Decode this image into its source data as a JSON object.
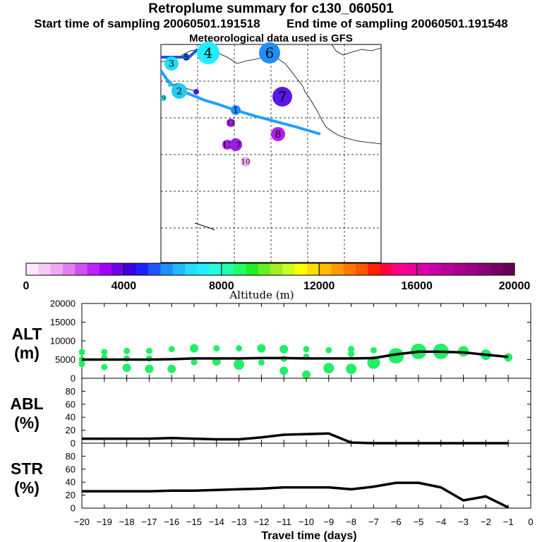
{
  "header": {
    "title": "Retroplume summary for c130_060501",
    "start_label": "Start time of sampling 20060501.191518",
    "end_label": "End time of sampling 20060501.191548",
    "met_label": "Meteorological data used is GFS"
  },
  "colors": {
    "series_line": "#000000",
    "alt_markers": "#22ee66",
    "track_main": "#1f9fff",
    "track_alt": "#1e56d8"
  },
  "chart_data": [
    {
      "type": "scatter",
      "name": "map",
      "description_labels": [
        "1",
        "2",
        "3",
        "4",
        "5",
        "6",
        "7",
        "8",
        "9",
        "10",
        "11",
        "12"
      ],
      "clusters": [
        {
          "label": "1",
          "color": "#1f8fff",
          "size": "small"
        },
        {
          "label": "2",
          "color": "#22ccee",
          "size": "medium"
        },
        {
          "label": "3",
          "color": "#22ddf8",
          "size": "medium"
        },
        {
          "label": "4",
          "color": "#22eeff",
          "size": "large"
        },
        {
          "label": "5",
          "color": "#1e56d8",
          "size": "small"
        },
        {
          "label": "6",
          "color": "#1f8fff",
          "size": "large"
        },
        {
          "label": "7",
          "color": "#5a17e8",
          "size": "large"
        },
        {
          "label": "8",
          "color": "#b51ae8",
          "size": "medium"
        },
        {
          "label": "9",
          "color": "#22eeff",
          "size": "small"
        },
        {
          "label": "10",
          "color": "#f0b8f0",
          "size": "small"
        },
        {
          "label": "11",
          "color": "#a91ee0",
          "size": "small"
        },
        {
          "label": "12",
          "color": "#9a2ad6",
          "size": "small"
        }
      ]
    },
    {
      "type": "colorbar",
      "name": "altitude_scale",
      "title": "Altitude (m)",
      "tick_labels": [
        "0",
        "4000",
        "8000",
        "12000",
        "16000",
        "20000"
      ],
      "range": [
        0,
        20000
      ],
      "colors": [
        "#ffe8ff",
        "#f8c8f8",
        "#f0a8f0",
        "#e080f0",
        "#d050f0",
        "#c020ff",
        "#9f00ff",
        "#7000ee",
        "#4000dd",
        "#2020ff",
        "#1e56ff",
        "#1f8fff",
        "#1fb8ff",
        "#22ddff",
        "#22eeff",
        "#22ffdd",
        "#22ffaa",
        "#22ff66",
        "#22ee22",
        "#66ee22",
        "#a0ee22",
        "#ccff22",
        "#ffff00",
        "#ffdd00",
        "#ffbb00",
        "#ff9900",
        "#ff7700",
        "#ff5500",
        "#ff2200",
        "#ff0044",
        "#ff0088",
        "#ee0099",
        "#dd00aa",
        "#cc00aa",
        "#bb0099",
        "#aa0088",
        "#990088",
        "#880077",
        "#770066",
        "#660055"
      ]
    },
    {
      "type": "line",
      "name": "ALT",
      "ylabel": "ALT\n(m)",
      "ylim": [
        0,
        20000
      ],
      "yticks": [
        "0",
        "5000",
        "10000",
        "15000",
        "20000"
      ],
      "x": [
        -20,
        -19,
        -18,
        -17,
        -16,
        -15,
        -14,
        -13,
        -12,
        -11,
        -10,
        -9,
        -8,
        -7,
        -6,
        -5,
        -4,
        -3,
        -2,
        -1
      ],
      "values": [
        5000,
        5000,
        5000,
        5000,
        5100,
        5300,
        5300,
        5300,
        5400,
        5400,
        5300,
        5300,
        5300,
        5400,
        6400,
        7100,
        7100,
        6900,
        6300,
        5700
      ],
      "markers": [
        {
          "x": -20,
          "y": 7000,
          "size": 1
        },
        {
          "x": -20,
          "y": 5000,
          "size": 1
        },
        {
          "x": -20,
          "y": 3800,
          "size": 1
        },
        {
          "x": -19,
          "y": 7000,
          "size": 1
        },
        {
          "x": -19,
          "y": 5500,
          "size": 1
        },
        {
          "x": -19,
          "y": 3000,
          "size": 1
        },
        {
          "x": -18,
          "y": 7300,
          "size": 1
        },
        {
          "x": -18,
          "y": 5300,
          "size": 1
        },
        {
          "x": -18,
          "y": 2800,
          "size": 2
        },
        {
          "x": -17,
          "y": 7300,
          "size": 1
        },
        {
          "x": -17,
          "y": 5300,
          "size": 1
        },
        {
          "x": -17,
          "y": 2500,
          "size": 2
        },
        {
          "x": -16,
          "y": 7800,
          "size": 1
        },
        {
          "x": -16,
          "y": 2500,
          "size": 2
        },
        {
          "x": -15,
          "y": 8000,
          "size": 2
        },
        {
          "x": -15,
          "y": 4300,
          "size": 1
        },
        {
          "x": -14,
          "y": 8000,
          "size": 1
        },
        {
          "x": -14,
          "y": 4500,
          "size": 2
        },
        {
          "x": -13,
          "y": 8000,
          "size": 1
        },
        {
          "x": -13,
          "y": 3700,
          "size": 3
        },
        {
          "x": -12,
          "y": 8000,
          "size": 2
        },
        {
          "x": -12,
          "y": 4200,
          "size": 1
        },
        {
          "x": -11,
          "y": 7800,
          "size": 2
        },
        {
          "x": -11,
          "y": 5200,
          "size": 1
        },
        {
          "x": -11,
          "y": 2000,
          "size": 2
        },
        {
          "x": -10,
          "y": 7800,
          "size": 1
        },
        {
          "x": -10,
          "y": 5800,
          "size": 1
        },
        {
          "x": -10,
          "y": 1000,
          "size": 2
        },
        {
          "x": -9,
          "y": 7500,
          "size": 1
        },
        {
          "x": -9,
          "y": 2700,
          "size": 3
        },
        {
          "x": -8,
          "y": 7800,
          "size": 1
        },
        {
          "x": -8,
          "y": 6500,
          "size": 1
        },
        {
          "x": -8,
          "y": 2500,
          "size": 3
        },
        {
          "x": -7,
          "y": 7500,
          "size": 1
        },
        {
          "x": -7,
          "y": 4200,
          "size": 4
        },
        {
          "x": -6,
          "y": 6000,
          "size": 5
        },
        {
          "x": -5,
          "y": 7200,
          "size": 5
        },
        {
          "x": -4,
          "y": 7200,
          "size": 5
        },
        {
          "x": -3,
          "y": 7200,
          "size": 3
        },
        {
          "x": -2,
          "y": 6300,
          "size": 3
        },
        {
          "x": -1,
          "y": 5600,
          "size": 2
        }
      ]
    },
    {
      "type": "line",
      "name": "ABL",
      "ylabel": "ABL\n(%)",
      "ylim": [
        0,
        100
      ],
      "yticks": [
        "0",
        "20",
        "40",
        "60",
        "80"
      ],
      "x": [
        -20,
        -19,
        -18,
        -17,
        -16,
        -15,
        -14,
        -13,
        -12,
        -11,
        -10,
        -9,
        -8,
        -7,
        -6,
        -5,
        -4,
        -3,
        -2,
        -1
      ],
      "values": [
        7,
        7,
        7,
        7,
        8,
        7,
        6,
        6,
        9,
        13,
        14,
        15,
        1,
        0,
        0,
        0,
        0,
        0,
        0,
        0
      ]
    },
    {
      "type": "line",
      "name": "STR",
      "ylabel": "STR\n(%)",
      "ylim": [
        0,
        100
      ],
      "yticks": [
        "0",
        "20",
        "40",
        "60",
        "80"
      ],
      "x": [
        -20,
        -19,
        -18,
        -17,
        -16,
        -15,
        -14,
        -13,
        -12,
        -11,
        -10,
        -9,
        -8,
        -7,
        -6,
        -5,
        -4,
        -3,
        -2,
        -1
      ],
      "values": [
        26,
        26,
        26,
        26,
        27,
        27,
        28,
        29,
        30,
        32,
        32,
        32,
        29,
        33,
        39,
        39,
        32,
        12,
        18,
        1
      ]
    },
    {
      "type": "axis",
      "name": "travel_time_axis",
      "xlabel": "Travel time (days)",
      "xlim": [
        -20,
        0
      ],
      "xticks": [
        "−20",
        "−19",
        "−18",
        "−17",
        "−16",
        "−15",
        "−14",
        "−13",
        "−12",
        "−11",
        "−10",
        "−9",
        "−8",
        "−7",
        "−6",
        "−5",
        "−4",
        "−3",
        "−2",
        "−1",
        "0"
      ]
    }
  ]
}
